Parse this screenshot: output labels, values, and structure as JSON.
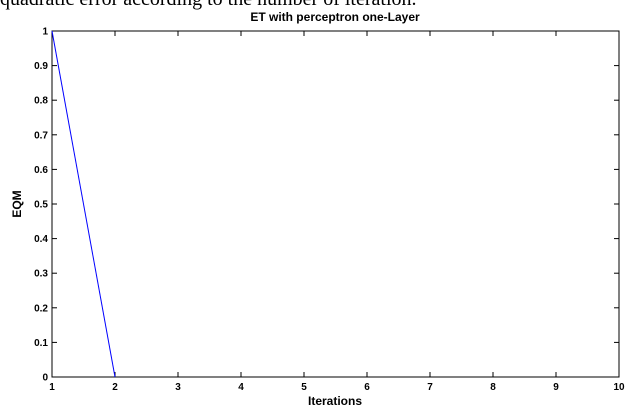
{
  "caption_text": "quadratic error according to the number of iteration.",
  "chart_data": {
    "type": "line",
    "title": "ET with perceptron one-Layer",
    "xlabel": "Iterations",
    "ylabel": "EQM",
    "xlim": [
      1,
      10
    ],
    "ylim": [
      0,
      1
    ],
    "xticks": [
      "1",
      "2",
      "3",
      "4",
      "5",
      "6",
      "7",
      "8",
      "9",
      "10"
    ],
    "yticks": [
      "0",
      "0.1",
      "0.2",
      "0.3",
      "0.4",
      "0.5",
      "0.6",
      "0.7",
      "0.8",
      "0.9",
      "1"
    ],
    "grid": false,
    "series": [
      {
        "x": [
          1,
          2
        ],
        "y": [
          1,
          0
        ],
        "color": "#0000ff"
      }
    ]
  }
}
